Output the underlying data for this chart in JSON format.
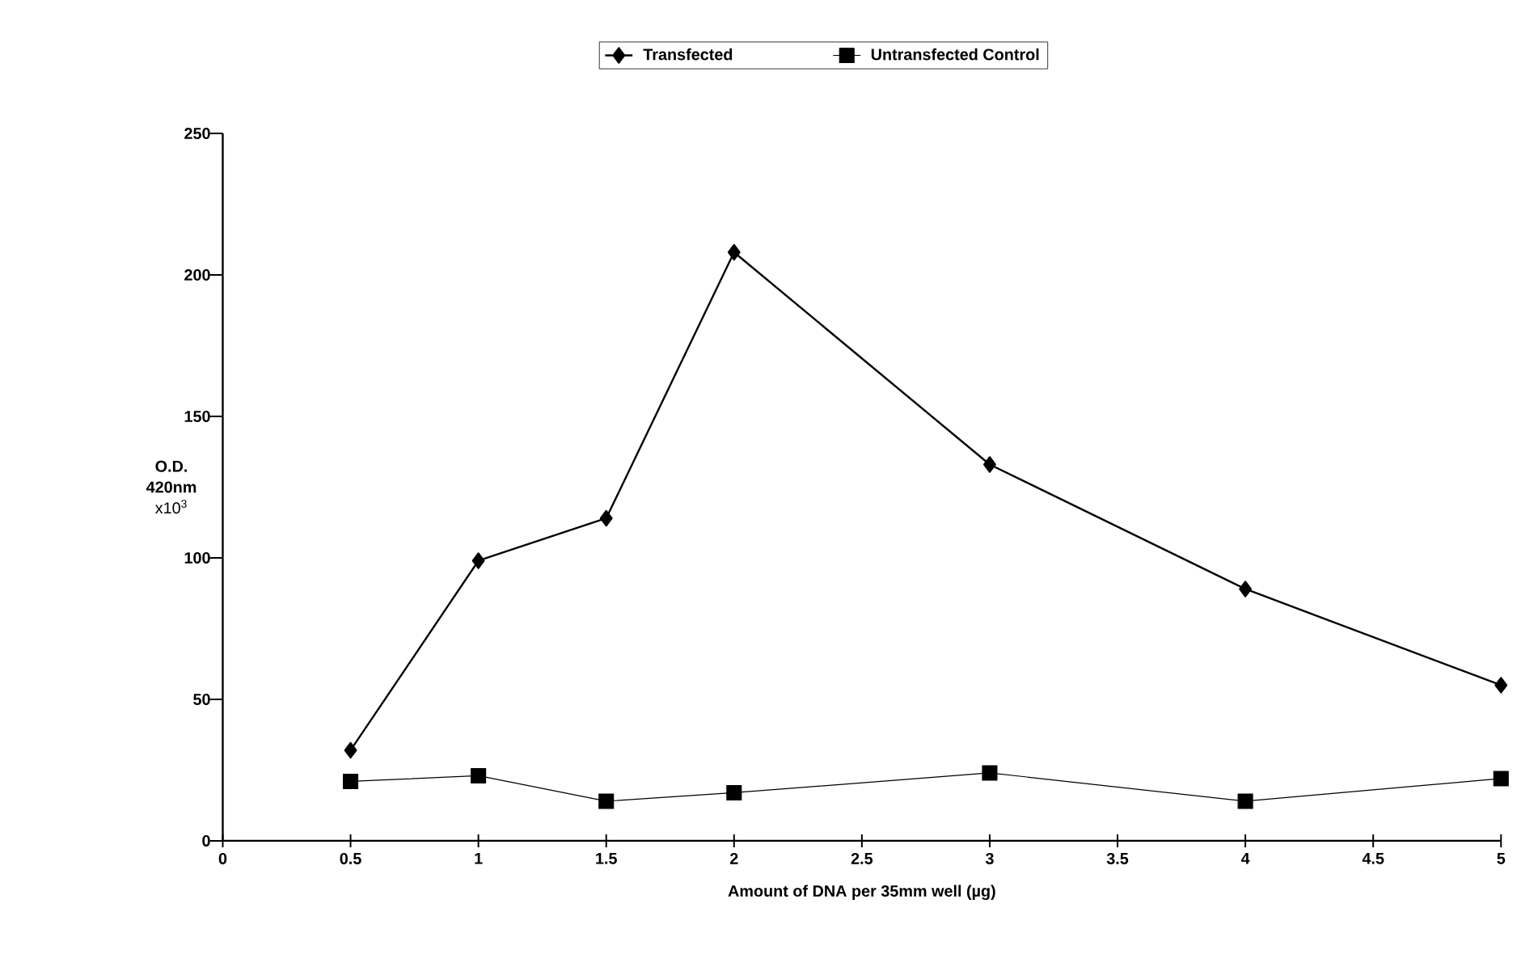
{
  "chart_data": {
    "type": "line",
    "xlabel": "Amount of DNA per 35mm well (µg)",
    "ylabel": "**O.D. 420nm** x10$^{3}$",
    "x": [
      0.5,
      1,
      1.5,
      2,
      3,
      4,
      5
    ],
    "series": [
      {
        "name": "Transfected",
        "color": "#000000",
        "marker": "diamond",
        "values": [
          32,
          99,
          114,
          208,
          133,
          89,
          55
        ]
      },
      {
        "name": "Untransfected Control",
        "color": "#000000",
        "marker": "square",
        "values": [
          21,
          23,
          14,
          17,
          24,
          14,
          22
        ]
      }
    ],
    "xlim": [
      0,
      5
    ],
    "ylim": [
      0,
      250
    ],
    "xticks": [
      0,
      0.5,
      1,
      1.5,
      2,
      2.5,
      3,
      3.5,
      4,
      4.5,
      5
    ],
    "yticks": [
      0,
      50,
      100,
      150,
      200,
      250
    ],
    "grid": false,
    "legend": "top"
  }
}
